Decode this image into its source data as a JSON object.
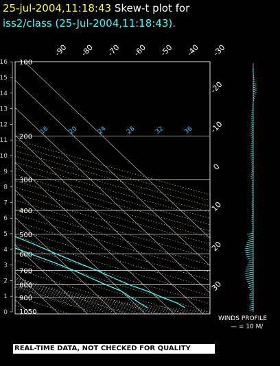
{
  "header": {
    "timestamp": "25-jul-2004,11:18:43",
    "title_rest": "Skew-t plot for",
    "subtitle": "iss2/class (25-Jul-2004,11:18:43)."
  },
  "winds": {
    "label": "WINDS PROFILE",
    "scale": "— = 10 M/"
  },
  "qc_banner": "REAL-TIME DATA, NOT CHECKED FOR QUALITY",
  "colors": {
    "background": "#000000",
    "sounding": "#33ffff",
    "isotherm": "#cfcfcf",
    "dry_adiabat": "#c8a36b",
    "mixing_ratio_label": "#33ccff",
    "timestamp": "#ffff33"
  },
  "chart_data": {
    "type": "line",
    "title": "",
    "pressure_axis": {
      "ticks": [
        "100",
        "200",
        "300",
        "400",
        "500",
        "600",
        "700",
        "800",
        "900",
        "1050"
      ],
      "values": [
        100,
        200,
        300,
        400,
        500,
        600,
        700,
        800,
        900,
        1050
      ],
      "range": [
        100,
        1050
      ],
      "scale": "log"
    },
    "height_axis": {
      "ticks": [
        "0",
        "1",
        "2",
        "3",
        "4",
        "5",
        "6",
        "7",
        "8",
        "9",
        "10",
        "11",
        "12",
        "13",
        "14",
        "15",
        "16"
      ],
      "values": [
        0,
        1,
        2,
        3,
        4,
        5,
        6,
        7,
        8,
        9,
        10,
        11,
        12,
        13,
        14,
        15,
        16
      ]
    },
    "isotherm_labels_top": {
      "ticks": [
        "-90",
        "-80",
        "-70",
        "-60",
        "-50",
        "-40",
        "-30"
      ],
      "values": [
        -90,
        -80,
        -70,
        -60,
        -50,
        -40,
        -30
      ]
    },
    "isotherm_labels_right": {
      "ticks": [
        "-20",
        "-10",
        "0",
        "10",
        "20",
        "30"
      ],
      "values": [
        -20,
        -10,
        0,
        10,
        20,
        30
      ]
    },
    "mixing_ratio_labels": {
      "ticks": [
        "16",
        "20",
        "24",
        "28",
        "32",
        "36"
      ],
      "values": [
        16,
        20,
        24,
        28,
        32,
        36
      ]
    },
    "grid": true,
    "series": [
      {
        "key": "temperature",
        "points": [
          [
            100,
            -73
          ],
          [
            110,
            -75
          ],
          [
            130,
            -74
          ],
          [
            150,
            -72
          ],
          [
            170,
            -70
          ],
          [
            200,
            -63
          ],
          [
            250,
            -50
          ],
          [
            300,
            -39
          ],
          [
            350,
            -29
          ],
          [
            400,
            -21
          ],
          [
            450,
            -14
          ],
          [
            500,
            -8
          ],
          [
            550,
            -3
          ],
          [
            600,
            1
          ],
          [
            650,
            5
          ],
          [
            700,
            9
          ],
          [
            750,
            12
          ],
          [
            800,
            15
          ],
          [
            850,
            19
          ],
          [
            900,
            22
          ],
          [
            950,
            25
          ],
          [
            990,
            26
          ]
        ]
      },
      {
        "key": "dewpoint",
        "points": [
          [
            260,
            -108
          ],
          [
            270,
            -78
          ],
          [
            280,
            -65
          ],
          [
            290,
            -64
          ],
          [
            300,
            -64
          ],
          [
            305,
            -80
          ],
          [
            312,
            -68
          ],
          [
            320,
            -82
          ],
          [
            330,
            -69
          ],
          [
            340,
            -81
          ],
          [
            350,
            -71
          ],
          [
            355,
            -88
          ],
          [
            362,
            -72
          ],
          [
            370,
            -100
          ],
          [
            378,
            -74
          ],
          [
            385,
            -106
          ],
          [
            392,
            -72
          ],
          [
            400,
            -75
          ],
          [
            410,
            -110
          ],
          [
            418,
            -70
          ],
          [
            425,
            -66
          ],
          [
            432,
            -58
          ],
          [
            438,
            -68
          ],
          [
            445,
            -55
          ],
          [
            450,
            -50
          ],
          [
            460,
            -42
          ],
          [
            480,
            -36
          ],
          [
            500,
            -30
          ],
          [
            520,
            -24
          ],
          [
            540,
            -17
          ],
          [
            560,
            -12
          ],
          [
            600,
            -8
          ],
          [
            650,
            -3
          ],
          [
            700,
            1
          ],
          [
            750,
            4
          ],
          [
            800,
            7
          ],
          [
            850,
            10
          ],
          [
            900,
            11
          ],
          [
            950,
            12
          ],
          [
            990,
            13
          ]
        ]
      }
    ]
  }
}
